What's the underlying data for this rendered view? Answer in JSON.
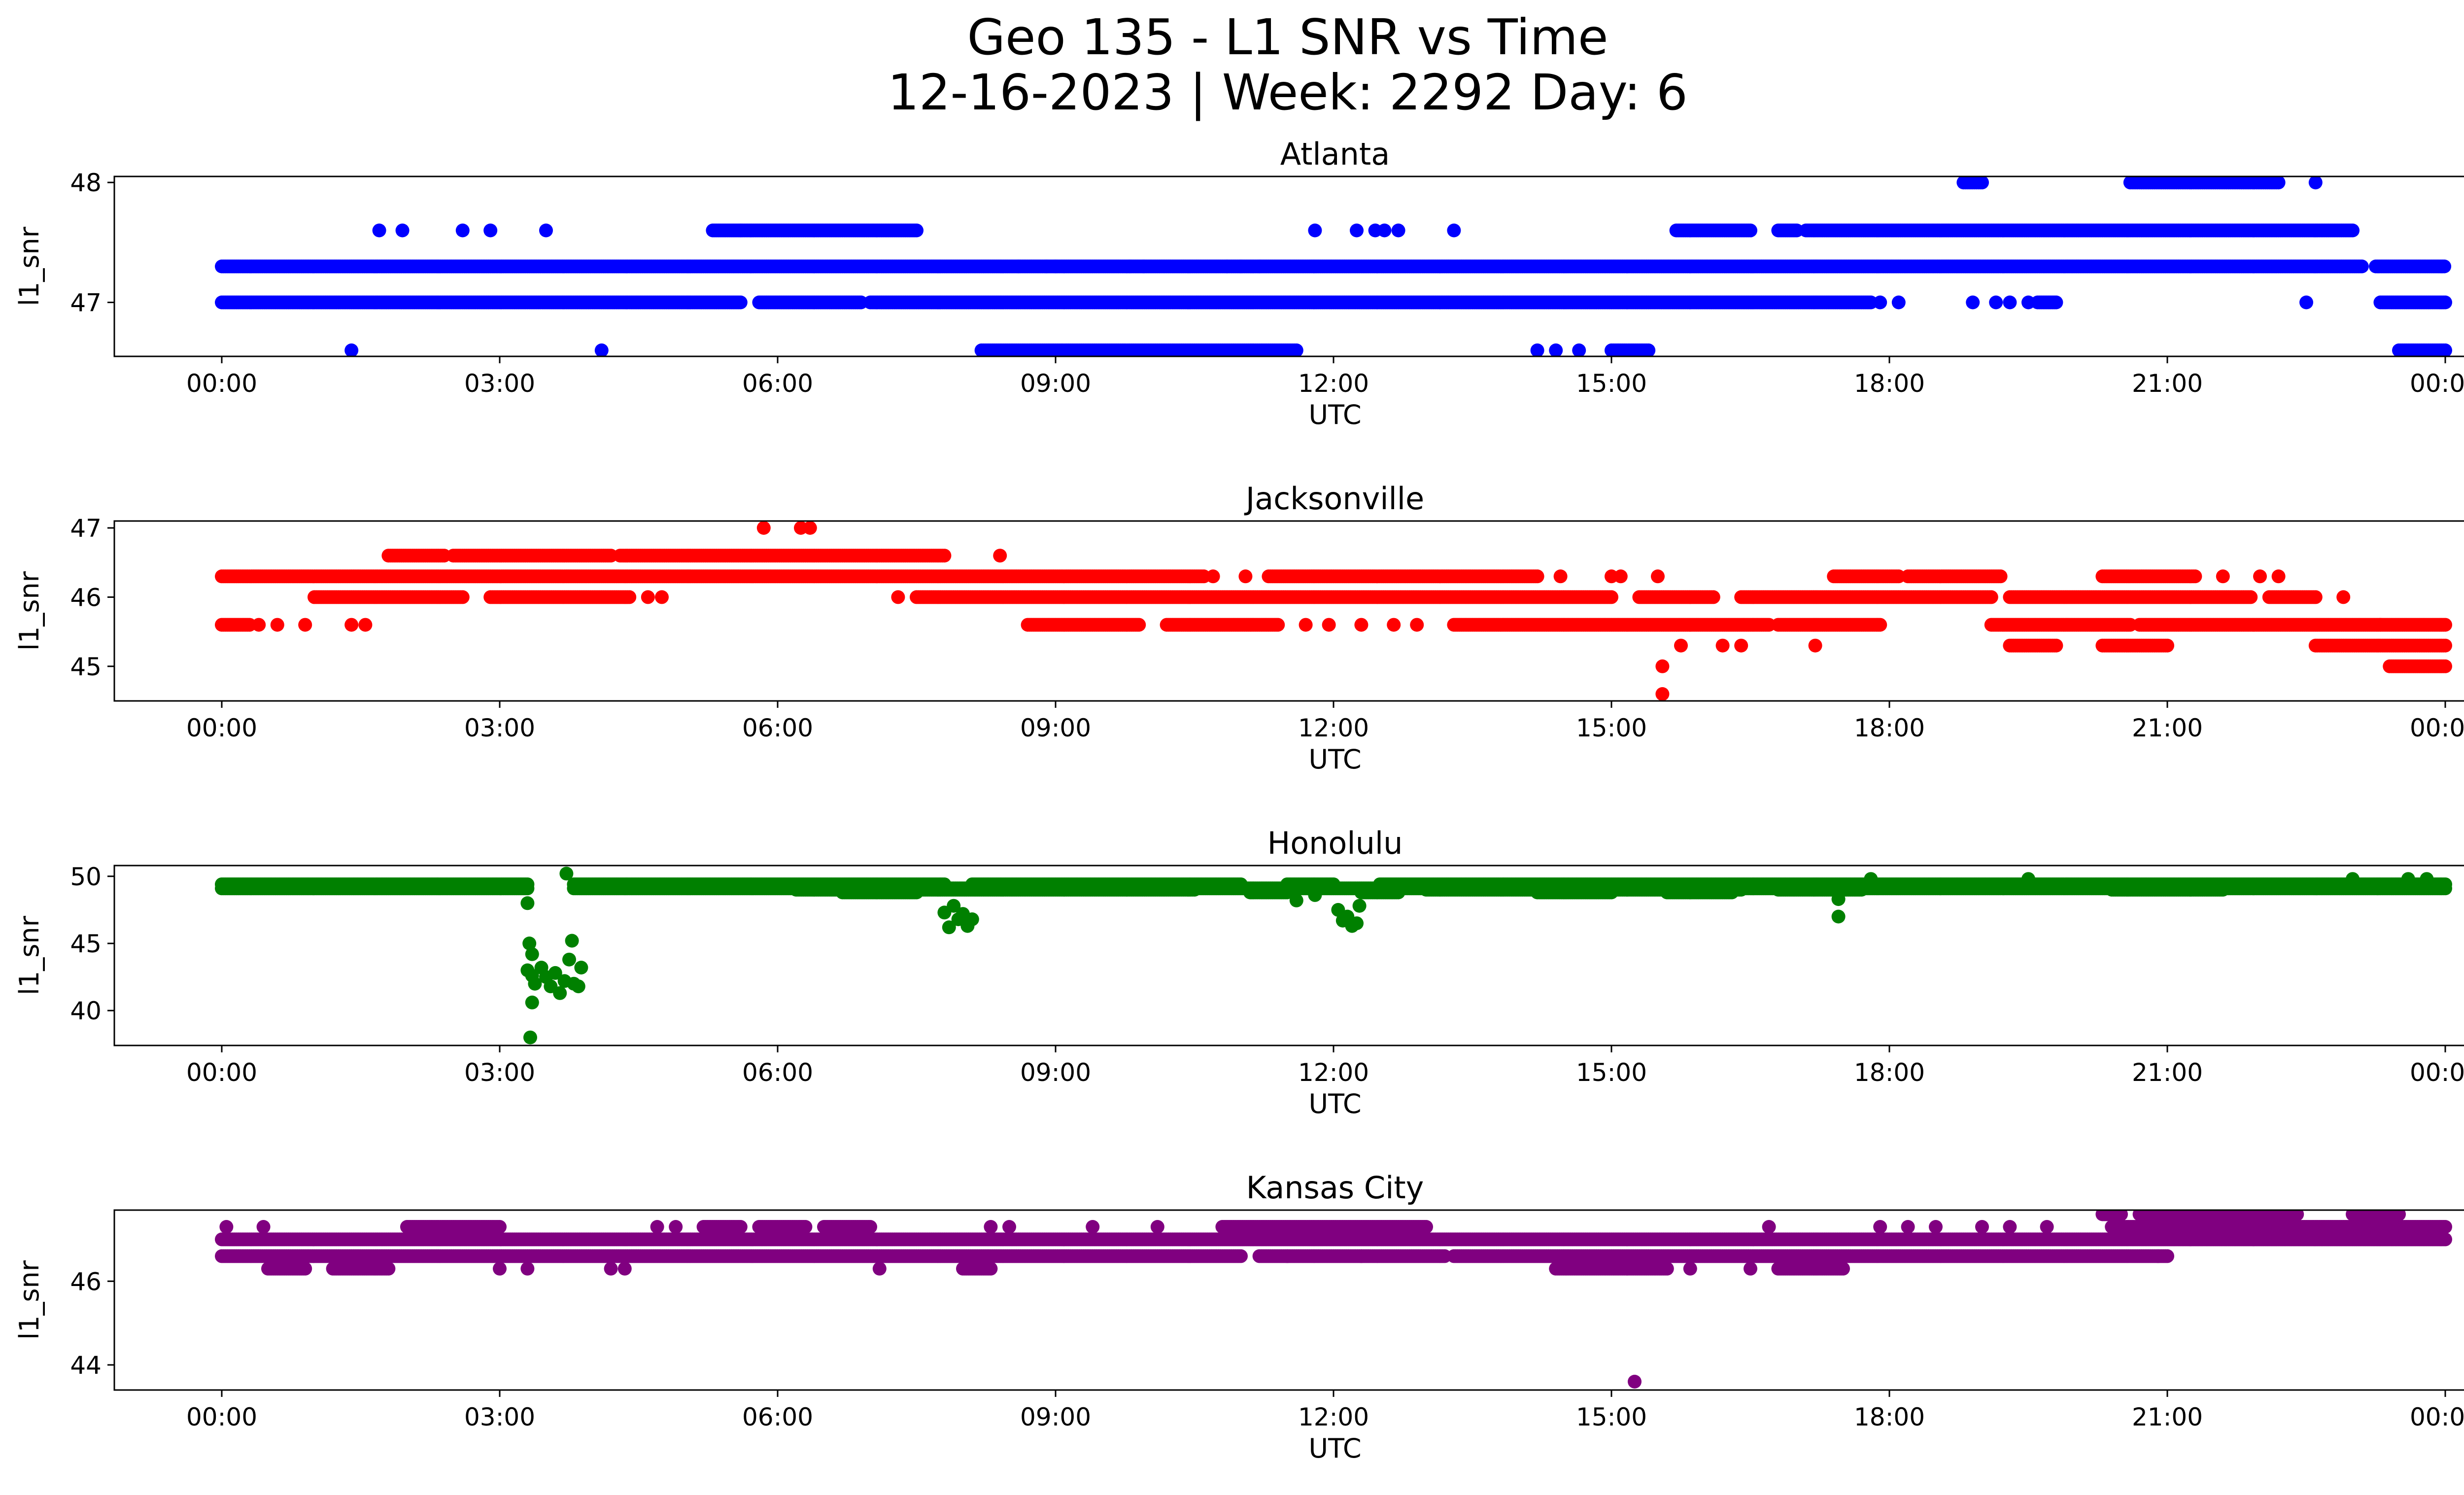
{
  "figure": {
    "title_line1": "Geo 135 - L1 SNR vs Time",
    "title_line2": "12-16-2023 | Week: 2292 Day: 6"
  },
  "chart_data": [
    {
      "type": "scatter",
      "title": "Atlanta",
      "xlabel": "UTC",
      "ylabel": "l1_snr",
      "color": "#0000ff",
      "xlim": [
        "2023-12-16 00:00",
        "2023-12-17 00:00"
      ],
      "ylim": [
        46.55,
        48.05
      ],
      "x_ticks": [
        "00:00",
        "03:00",
        "06:00",
        "09:00",
        "12:00",
        "15:00",
        "18:00",
        "21:00",
        "00:00"
      ],
      "y_ticks": [
        47,
        48
      ],
      "grid": false,
      "band_hours": [
        {
          "y": 47.3,
          "ranges": [
            [
              0.0,
              23.1
            ],
            [
              23.25,
              24.0
            ]
          ]
        },
        {
          "y": 47.0,
          "ranges": [
            [
              0.0,
              5.6
            ],
            [
              5.8,
              6.9
            ],
            [
              7.0,
              17.8
            ],
            [
              19.6,
              19.8
            ],
            [
              23.3,
              24.0
            ]
          ]
        },
        {
          "y": 47.6,
          "ranges": [
            [
              5.3,
              5.6
            ],
            [
              5.6,
              7.5
            ],
            [
              15.7,
              16.5
            ],
            [
              16.8,
              17.0
            ],
            [
              17.1,
              23.0
            ]
          ]
        },
        {
          "y": 46.6,
          "ranges": [
            [
              8.2,
              11.6
            ],
            [
              15.0,
              15.4
            ],
            [
              23.5,
              24.0
            ]
          ]
        },
        {
          "y": 48.0,
          "ranges": [
            [
              18.8,
              19.0
            ],
            [
              20.6,
              22.2
            ]
          ]
        }
      ],
      "points_hours": [
        {
          "x": 1.7,
          "y": 47.6
        },
        {
          "x": 1.95,
          "y": 47.6
        },
        {
          "x": 2.6,
          "y": 47.6
        },
        {
          "x": 2.9,
          "y": 47.6
        },
        {
          "x": 3.5,
          "y": 47.6
        },
        {
          "x": 1.4,
          "y": 46.6
        },
        {
          "x": 4.1,
          "y": 46.6
        },
        {
          "x": 8.6,
          "y": 47.3
        },
        {
          "x": 8.9,
          "y": 47.3
        },
        {
          "x": 9.0,
          "y": 47.3
        },
        {
          "x": 9.8,
          "y": 47.3
        },
        {
          "x": 9.95,
          "y": 47.3
        },
        {
          "x": 10.85,
          "y": 47.3
        },
        {
          "x": 11.0,
          "y": 47.3
        },
        {
          "x": 11.2,
          "y": 47.3
        },
        {
          "x": 11.8,
          "y": 47.6
        },
        {
          "x": 12.25,
          "y": 47.6
        },
        {
          "x": 12.45,
          "y": 47.6
        },
        {
          "x": 12.55,
          "y": 47.6
        },
        {
          "x": 12.7,
          "y": 47.6
        },
        {
          "x": 13.3,
          "y": 47.6
        },
        {
          "x": 14.2,
          "y": 46.6
        },
        {
          "x": 14.4,
          "y": 46.6
        },
        {
          "x": 14.65,
          "y": 46.6
        },
        {
          "x": 17.9,
          "y": 47.0
        },
        {
          "x": 18.1,
          "y": 47.0
        },
        {
          "x": 18.9,
          "y": 47.0
        },
        {
          "x": 19.15,
          "y": 47.0
        },
        {
          "x": 19.3,
          "y": 47.0
        },
        {
          "x": 19.5,
          "y": 47.0
        },
        {
          "x": 22.5,
          "y": 47.0
        },
        {
          "x": 22.6,
          "y": 48.0
        }
      ]
    },
    {
      "type": "scatter",
      "title": "Jacksonville",
      "xlabel": "UTC",
      "ylabel": "l1_snr",
      "color": "#ff0000",
      "xlim": [
        "2023-12-16 00:00",
        "2023-12-17 00:00"
      ],
      "ylim": [
        44.5,
        47.1
      ],
      "x_ticks": [
        "00:00",
        "03:00",
        "06:00",
        "09:00",
        "12:00",
        "15:00",
        "18:00",
        "21:00",
        "00:00"
      ],
      "y_ticks": [
        45,
        46,
        47
      ],
      "grid": false,
      "band_hours": [
        {
          "y": 46.3,
          "ranges": [
            [
              0.0,
              10.6
            ],
            [
              11.3,
              14.2
            ],
            [
              17.4,
              18.1
            ],
            [
              18.2,
              19.2
            ],
            [
              20.3,
              21.3
            ]
          ]
        },
        {
          "y": 46.0,
          "ranges": [
            [
              1.0,
              2.6
            ],
            [
              2.9,
              4.4
            ],
            [
              7.5,
              15.0
            ],
            [
              15.3,
              16.1
            ],
            [
              16.4,
              19.1
            ],
            [
              19.3,
              21.9
            ],
            [
              22.1,
              22.6
            ]
          ]
        },
        {
          "y": 46.6,
          "ranges": [
            [
              1.8,
              2.4
            ],
            [
              2.5,
              4.2
            ],
            [
              4.3,
              7.8
            ]
          ]
        },
        {
          "y": 45.6,
          "ranges": [
            [
              0.0,
              0.3
            ],
            [
              8.7,
              9.9
            ],
            [
              10.2,
              11.4
            ],
            [
              13.3,
              16.7
            ],
            [
              16.8,
              17.9
            ],
            [
              19.1,
              20.6
            ],
            [
              20.7,
              23.3
            ],
            [
              23.3,
              24.0
            ]
          ]
        },
        {
          "y": 45.3,
          "ranges": [
            [
              19.3,
              19.8
            ],
            [
              20.3,
              21.0
            ],
            [
              22.6,
              24.0
            ]
          ]
        },
        {
          "y": 45.0,
          "ranges": [
            [
              23.4,
              24.0
            ]
          ]
        }
      ],
      "points_hours": [
        {
          "x": 0.4,
          "y": 45.6
        },
        {
          "x": 0.6,
          "y": 45.6
        },
        {
          "x": 0.9,
          "y": 45.6
        },
        {
          "x": 1.4,
          "y": 45.6
        },
        {
          "x": 1.55,
          "y": 45.6
        },
        {
          "x": 4.6,
          "y": 46.0
        },
        {
          "x": 4.75,
          "y": 46.0
        },
        {
          "x": 5.85,
          "y": 47.0
        },
        {
          "x": 6.25,
          "y": 47.0
        },
        {
          "x": 6.35,
          "y": 47.0
        },
        {
          "x": 7.3,
          "y": 46.0
        },
        {
          "x": 8.4,
          "y": 46.6
        },
        {
          "x": 10.7,
          "y": 46.3
        },
        {
          "x": 11.05,
          "y": 46.3
        },
        {
          "x": 11.7,
          "y": 45.6
        },
        {
          "x": 11.95,
          "y": 45.6
        },
        {
          "x": 12.3,
          "y": 45.6
        },
        {
          "x": 12.65,
          "y": 45.6
        },
        {
          "x": 12.9,
          "y": 45.6
        },
        {
          "x": 14.45,
          "y": 46.3
        },
        {
          "x": 15.0,
          "y": 46.3
        },
        {
          "x": 15.1,
          "y": 46.3
        },
        {
          "x": 15.5,
          "y": 46.3
        },
        {
          "x": 15.55,
          "y": 45.0
        },
        {
          "x": 15.55,
          "y": 44.6
        },
        {
          "x": 15.75,
          "y": 45.3
        },
        {
          "x": 16.2,
          "y": 45.3
        },
        {
          "x": 16.4,
          "y": 45.3
        },
        {
          "x": 17.2,
          "y": 45.3
        },
        {
          "x": 21.6,
          "y": 46.3
        },
        {
          "x": 22.0,
          "y": 46.3
        },
        {
          "x": 22.2,
          "y": 46.3
        },
        {
          "x": 22.9,
          "y": 46.0
        }
      ]
    },
    {
      "type": "scatter",
      "title": "Honolulu",
      "xlabel": "UTC",
      "ylabel": "l1_snr",
      "color": "#008000",
      "xlim": [
        "2023-12-16 00:00",
        "2023-12-17 00:00"
      ],
      "ylim": [
        37.4,
        50.8
      ],
      "x_ticks": [
        "00:00",
        "03:00",
        "06:00",
        "09:00",
        "12:00",
        "15:00",
        "18:00",
        "21:00",
        "00:00"
      ],
      "y_ticks": [
        40,
        45,
        50
      ],
      "grid": false,
      "band_hours": [
        {
          "y": 49.4,
          "ranges": [
            [
              0.0,
              3.3
            ],
            [
              3.8,
              7.8
            ],
            [
              8.1,
              11.0
            ],
            [
              11.5,
              12.0
            ],
            [
              12.5,
              24.0
            ]
          ]
        },
        {
          "y": 49.1,
          "ranges": [
            [
              0.0,
              3.3
            ],
            [
              3.8,
              24.0
            ]
          ]
        },
        {
          "y": 49.0,
          "ranges": [
            [
              6.2,
              10.5
            ],
            [
              13.0,
              16.4
            ],
            [
              16.8,
              17.7
            ],
            [
              20.4,
              21.6
            ]
          ]
        },
        {
          "y": 48.8,
          "ranges": [
            [
              6.7,
              7.5
            ],
            [
              11.1,
              11.5
            ],
            [
              12.3,
              12.7
            ],
            [
              14.2,
              15.0
            ],
            [
              15.6,
              16.3
            ]
          ]
        }
      ],
      "points_hours": [
        {
          "x": 3.3,
          "y": 48.0
        },
        {
          "x": 3.32,
          "y": 45.0
        },
        {
          "x": 3.35,
          "y": 44.2
        },
        {
          "x": 3.3,
          "y": 43.0
        },
        {
          "x": 3.35,
          "y": 42.6
        },
        {
          "x": 3.38,
          "y": 42.0
        },
        {
          "x": 3.35,
          "y": 40.6
        },
        {
          "x": 3.33,
          "y": 38.0
        },
        {
          "x": 3.45,
          "y": 43.2
        },
        {
          "x": 3.5,
          "y": 42.5
        },
        {
          "x": 3.55,
          "y": 41.8
        },
        {
          "x": 3.6,
          "y": 42.8
        },
        {
          "x": 3.65,
          "y": 41.3
        },
        {
          "x": 3.7,
          "y": 42.2
        },
        {
          "x": 3.75,
          "y": 43.8
        },
        {
          "x": 3.78,
          "y": 45.2
        },
        {
          "x": 3.8,
          "y": 42.0
        },
        {
          "x": 3.85,
          "y": 41.8
        },
        {
          "x": 3.88,
          "y": 43.2
        },
        {
          "x": 3.72,
          "y": 50.2
        },
        {
          "x": 7.8,
          "y": 47.3
        },
        {
          "x": 7.85,
          "y": 46.2
        },
        {
          "x": 7.9,
          "y": 47.8
        },
        {
          "x": 7.95,
          "y": 46.8
        },
        {
          "x": 8.0,
          "y": 47.2
        },
        {
          "x": 8.05,
          "y": 46.3
        },
        {
          "x": 8.1,
          "y": 46.8
        },
        {
          "x": 11.6,
          "y": 48.2
        },
        {
          "x": 11.8,
          "y": 48.6
        },
        {
          "x": 12.05,
          "y": 47.5
        },
        {
          "x": 12.1,
          "y": 46.7
        },
        {
          "x": 12.15,
          "y": 47.0
        },
        {
          "x": 12.2,
          "y": 46.3
        },
        {
          "x": 12.25,
          "y": 46.5
        },
        {
          "x": 12.28,
          "y": 47.8
        },
        {
          "x": 17.45,
          "y": 48.3
        },
        {
          "x": 17.45,
          "y": 47.0
        },
        {
          "x": 17.8,
          "y": 49.8
        },
        {
          "x": 19.5,
          "y": 49.8
        },
        {
          "x": 23.0,
          "y": 49.8
        },
        {
          "x": 23.6,
          "y": 49.8
        },
        {
          "x": 23.8,
          "y": 49.8
        }
      ]
    },
    {
      "type": "scatter",
      "title": "Kansas City",
      "xlabel": "UTC",
      "ylabel": "l1_snr",
      "color": "#800080",
      "xlim": [
        "2023-12-16 00:00",
        "2023-12-17 00:00"
      ],
      "ylim": [
        43.4,
        47.7
      ],
      "x_ticks": [
        "00:00",
        "03:00",
        "06:00",
        "09:00",
        "12:00",
        "15:00",
        "18:00",
        "21:00",
        "00:00"
      ],
      "y_ticks": [
        44,
        46
      ],
      "grid": false,
      "band_hours": [
        {
          "y": 47.0,
          "ranges": [
            [
              0.0,
              24.0
            ]
          ]
        },
        {
          "y": 46.6,
          "ranges": [
            [
              0.0,
              11.0
            ],
            [
              11.2,
              13.2
            ],
            [
              13.3,
              21.0
            ]
          ]
        },
        {
          "y": 46.3,
          "ranges": [
            [
              0.5,
              0.9
            ],
            [
              1.2,
              1.8
            ],
            [
              8.0,
              8.3
            ],
            [
              14.4,
              15.6
            ],
            [
              16.8,
              17.5
            ]
          ]
        },
        {
          "y": 47.3,
          "ranges": [
            [
              2.0,
              3.0
            ],
            [
              5.2,
              5.6
            ],
            [
              5.8,
              6.3
            ],
            [
              6.5,
              7.0
            ],
            [
              10.8,
              13.0
            ],
            [
              20.4,
              24.0
            ]
          ]
        },
        {
          "y": 47.6,
          "ranges": [
            [
              20.3,
              20.5
            ],
            [
              20.7,
              22.4
            ],
            [
              23.0,
              23.5
            ]
          ]
        }
      ],
      "points_hours": [
        {
          "x": 0.05,
          "y": 47.3
        },
        {
          "x": 0.45,
          "y": 47.3
        },
        {
          "x": 3.0,
          "y": 46.3
        },
        {
          "x": 3.3,
          "y": 46.3
        },
        {
          "x": 4.2,
          "y": 46.3
        },
        {
          "x": 4.35,
          "y": 46.3
        },
        {
          "x": 4.7,
          "y": 47.3
        },
        {
          "x": 4.9,
          "y": 47.3
        },
        {
          "x": 7.1,
          "y": 46.3
        },
        {
          "x": 8.3,
          "y": 47.3
        },
        {
          "x": 8.5,
          "y": 47.3
        },
        {
          "x": 9.4,
          "y": 47.3
        },
        {
          "x": 10.1,
          "y": 47.3
        },
        {
          "x": 11.5,
          "y": 46.6
        },
        {
          "x": 12.3,
          "y": 46.6
        },
        {
          "x": 15.85,
          "y": 46.3
        },
        {
          "x": 16.5,
          "y": 46.3
        },
        {
          "x": 16.7,
          "y": 47.3
        },
        {
          "x": 17.9,
          "y": 47.3
        },
        {
          "x": 18.2,
          "y": 47.3
        },
        {
          "x": 18.5,
          "y": 47.3
        },
        {
          "x": 19.0,
          "y": 47.3
        },
        {
          "x": 19.3,
          "y": 47.3
        },
        {
          "x": 19.7,
          "y": 47.3
        },
        {
          "x": 20.9,
          "y": 46.6
        },
        {
          "x": 15.25,
          "y": 43.6
        }
      ]
    }
  ]
}
